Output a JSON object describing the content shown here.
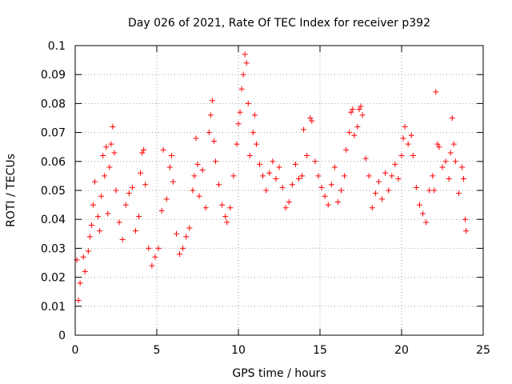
{
  "chart_data": {
    "type": "scatter",
    "title": "Day 026 of 2021, Rate Of TEC Index for receiver p392",
    "xlabel": "GPS time / hours",
    "ylabel": "ROTI / TECUs",
    "xlim": [
      0,
      25
    ],
    "ylim": [
      0,
      0.1
    ],
    "x_ticks": [
      0,
      5,
      10,
      15,
      20,
      25
    ],
    "y_ticks": [
      0,
      0.01,
      0.02,
      0.03,
      0.04,
      0.05,
      0.06,
      0.07,
      0.08,
      0.09,
      0.1
    ],
    "x_tick_labels": [
      "0",
      "5",
      "10",
      "15",
      "20",
      "25"
    ],
    "y_tick_labels": [
      "0",
      "0.01",
      "0.02",
      "0.03",
      "0.04",
      "0.05",
      "0.06",
      "0.07",
      "0.08",
      "0.09",
      "0.1"
    ],
    "grid": true,
    "marker": "plus",
    "marker_color": "#ff0000",
    "series": [
      {
        "points": [
          [
            0.1,
            0.026
          ],
          [
            0.2,
            0.012
          ],
          [
            0.3,
            0.018
          ],
          [
            0.5,
            0.027
          ],
          [
            0.6,
            0.022
          ],
          [
            0.8,
            0.029
          ],
          [
            0.9,
            0.034
          ],
          [
            1.0,
            0.038
          ],
          [
            1.1,
            0.045
          ],
          [
            1.2,
            0.053
          ],
          [
            1.4,
            0.041
          ],
          [
            1.5,
            0.036
          ],
          [
            1.6,
            0.048
          ],
          [
            1.7,
            0.062
          ],
          [
            1.8,
            0.055
          ],
          [
            1.9,
            0.065
          ],
          [
            2.0,
            0.042
          ],
          [
            2.1,
            0.058
          ],
          [
            2.2,
            0.066
          ],
          [
            2.3,
            0.072
          ],
          [
            2.4,
            0.063
          ],
          [
            2.5,
            0.05
          ],
          [
            2.7,
            0.039
          ],
          [
            2.9,
            0.033
          ],
          [
            3.1,
            0.045
          ],
          [
            3.3,
            0.049
          ],
          [
            3.5,
            0.051
          ],
          [
            3.7,
            0.036
          ],
          [
            3.9,
            0.041
          ],
          [
            4.0,
            0.056
          ],
          [
            4.1,
            0.063
          ],
          [
            4.2,
            0.064
          ],
          [
            4.3,
            0.052
          ],
          [
            4.5,
            0.03
          ],
          [
            4.7,
            0.024
          ],
          [
            4.9,
            0.027
          ],
          [
            5.1,
            0.03
          ],
          [
            5.3,
            0.043
          ],
          [
            5.4,
            0.064
          ],
          [
            5.6,
            0.047
          ],
          [
            5.8,
            0.058
          ],
          [
            5.9,
            0.062
          ],
          [
            6.0,
            0.053
          ],
          [
            6.2,
            0.035
          ],
          [
            6.4,
            0.028
          ],
          [
            6.6,
            0.03
          ],
          [
            6.8,
            0.034
          ],
          [
            7.0,
            0.037
          ],
          [
            7.2,
            0.05
          ],
          [
            7.3,
            0.055
          ],
          [
            7.4,
            0.068
          ],
          [
            7.5,
            0.059
          ],
          [
            7.6,
            0.048
          ],
          [
            7.8,
            0.057
          ],
          [
            8.0,
            0.044
          ],
          [
            8.2,
            0.07
          ],
          [
            8.3,
            0.076
          ],
          [
            8.4,
            0.081
          ],
          [
            8.5,
            0.067
          ],
          [
            8.6,
            0.06
          ],
          [
            8.8,
            0.052
          ],
          [
            9.0,
            0.045
          ],
          [
            9.2,
            0.041
          ],
          [
            9.3,
            0.039
          ],
          [
            9.5,
            0.044
          ],
          [
            9.7,
            0.055
          ],
          [
            9.9,
            0.066
          ],
          [
            10.0,
            0.073
          ],
          [
            10.1,
            0.077
          ],
          [
            10.2,
            0.085
          ],
          [
            10.3,
            0.09
          ],
          [
            10.4,
            0.097
          ],
          [
            10.5,
            0.094
          ],
          [
            10.6,
            0.08
          ],
          [
            10.7,
            0.062
          ],
          [
            10.9,
            0.07
          ],
          [
            11.0,
            0.076
          ],
          [
            11.1,
            0.066
          ],
          [
            11.3,
            0.059
          ],
          [
            11.5,
            0.055
          ],
          [
            11.7,
            0.05
          ],
          [
            11.9,
            0.056
          ],
          [
            12.1,
            0.06
          ],
          [
            12.3,
            0.054
          ],
          [
            12.5,
            0.058
          ],
          [
            12.7,
            0.051
          ],
          [
            12.9,
            0.044
          ],
          [
            13.1,
            0.046
          ],
          [
            13.3,
            0.052
          ],
          [
            13.5,
            0.059
          ],
          [
            13.7,
            0.054
          ],
          [
            13.9,
            0.055
          ],
          [
            14.0,
            0.071
          ],
          [
            14.2,
            0.062
          ],
          [
            14.4,
            0.075
          ],
          [
            14.5,
            0.074
          ],
          [
            14.7,
            0.06
          ],
          [
            14.9,
            0.055
          ],
          [
            15.1,
            0.051
          ],
          [
            15.3,
            0.048
          ],
          [
            15.5,
            0.045
          ],
          [
            15.7,
            0.052
          ],
          [
            15.9,
            0.058
          ],
          [
            16.1,
            0.046
          ],
          [
            16.3,
            0.05
          ],
          [
            16.5,
            0.055
          ],
          [
            16.6,
            0.064
          ],
          [
            16.8,
            0.07
          ],
          [
            16.9,
            0.077
          ],
          [
            17.0,
            0.078
          ],
          [
            17.1,
            0.069
          ],
          [
            17.3,
            0.072
          ],
          [
            17.4,
            0.078
          ],
          [
            17.5,
            0.079
          ],
          [
            17.6,
            0.076
          ],
          [
            17.8,
            0.061
          ],
          [
            18.0,
            0.055
          ],
          [
            18.2,
            0.044
          ],
          [
            18.4,
            0.049
          ],
          [
            18.6,
            0.053
          ],
          [
            18.8,
            0.047
          ],
          [
            19.0,
            0.056
          ],
          [
            19.2,
            0.05
          ],
          [
            19.4,
            0.055
          ],
          [
            19.6,
            0.059
          ],
          [
            19.8,
            0.054
          ],
          [
            20.0,
            0.062
          ],
          [
            20.1,
            0.068
          ],
          [
            20.2,
            0.072
          ],
          [
            20.4,
            0.066
          ],
          [
            20.6,
            0.069
          ],
          [
            20.7,
            0.062
          ],
          [
            20.9,
            0.051
          ],
          [
            21.1,
            0.045
          ],
          [
            21.3,
            0.042
          ],
          [
            21.5,
            0.039
          ],
          [
            21.7,
            0.05
          ],
          [
            21.9,
            0.055
          ],
          [
            22.0,
            0.05
          ],
          [
            22.1,
            0.084
          ],
          [
            22.2,
            0.066
          ],
          [
            22.3,
            0.065
          ],
          [
            22.5,
            0.058
          ],
          [
            22.7,
            0.06
          ],
          [
            22.9,
            0.054
          ],
          [
            23.0,
            0.063
          ],
          [
            23.1,
            0.075
          ],
          [
            23.2,
            0.066
          ],
          [
            23.3,
            0.06
          ],
          [
            23.5,
            0.049
          ],
          [
            23.7,
            0.058
          ],
          [
            23.8,
            0.054
          ],
          [
            23.9,
            0.04
          ],
          [
            23.95,
            0.036
          ]
        ]
      }
    ]
  }
}
